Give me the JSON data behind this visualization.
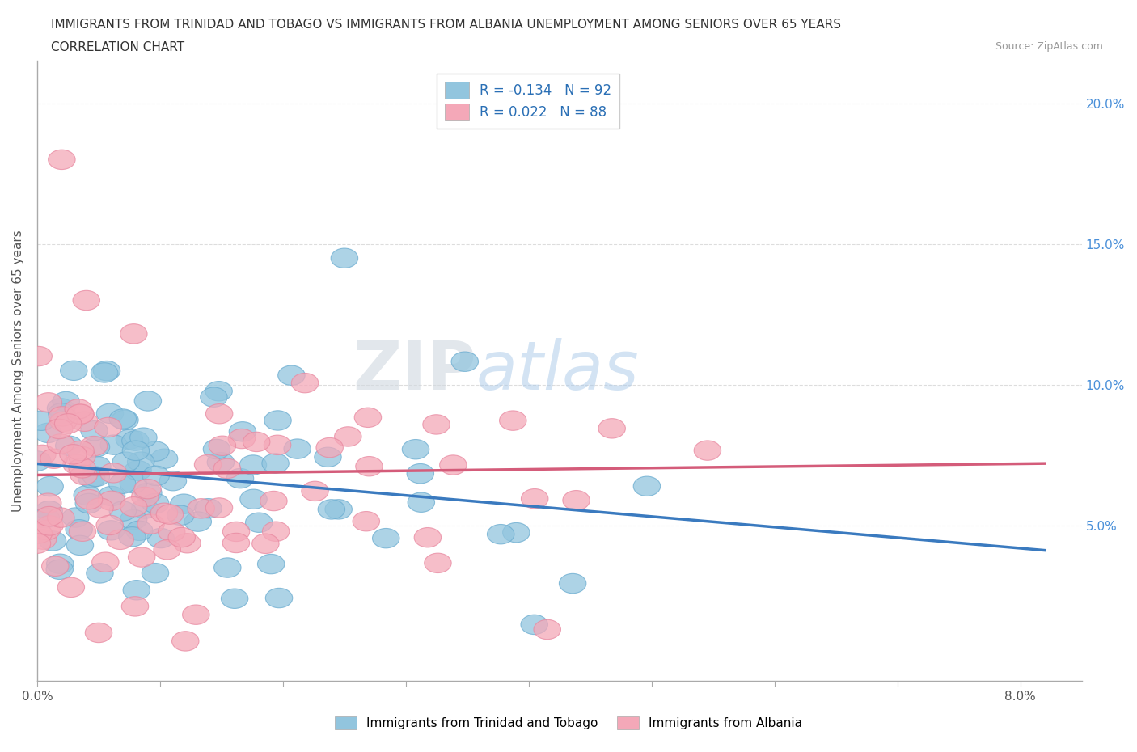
{
  "title_line1": "IMMIGRANTS FROM TRINIDAD AND TOBAGO VS IMMIGRANTS FROM ALBANIA UNEMPLOYMENT AMONG SENIORS OVER 65 YEARS",
  "title_line2": "CORRELATION CHART",
  "source_text": "Source: ZipAtlas.com",
  "ylabel": "Unemployment Among Seniors over 65 years",
  "xlim": [
    0.0,
    0.085
  ],
  "ylim": [
    -0.005,
    0.215
  ],
  "xticks": [
    0.0,
    0.01,
    0.02,
    0.03,
    0.04,
    0.05,
    0.06,
    0.07,
    0.08
  ],
  "xtick_labels": [
    "0.0%",
    "",
    "",
    "",
    "",
    "",
    "",
    "",
    "8.0%"
  ],
  "yticks": [
    0.0,
    0.05,
    0.1,
    0.15,
    0.2
  ],
  "ytick_labels_left": [
    "",
    "",
    "",
    "",
    ""
  ],
  "ytick_labels_right": [
    "",
    "5.0%",
    "10.0%",
    "15.0%",
    "20.0%"
  ],
  "color_blue": "#92c5de",
  "color_blue_edge": "#6aacd0",
  "color_pink": "#f4a8b8",
  "color_pink_edge": "#e888a0",
  "color_line_blue": "#3a7abf",
  "color_line_pink": "#d45c7a",
  "R_blue": -0.134,
  "N_blue": 92,
  "R_pink": 0.022,
  "N_pink": 88,
  "legend_label_blue": "Immigrants from Trinidad and Tobago",
  "legend_label_pink": "Immigrants from Albania",
  "watermark_zip": "ZIP",
  "watermark_atlas": "atlas",
  "grid_color": "#dddddd",
  "tick_color": "#aaaaaa",
  "text_color": "#333333",
  "source_color": "#999999"
}
